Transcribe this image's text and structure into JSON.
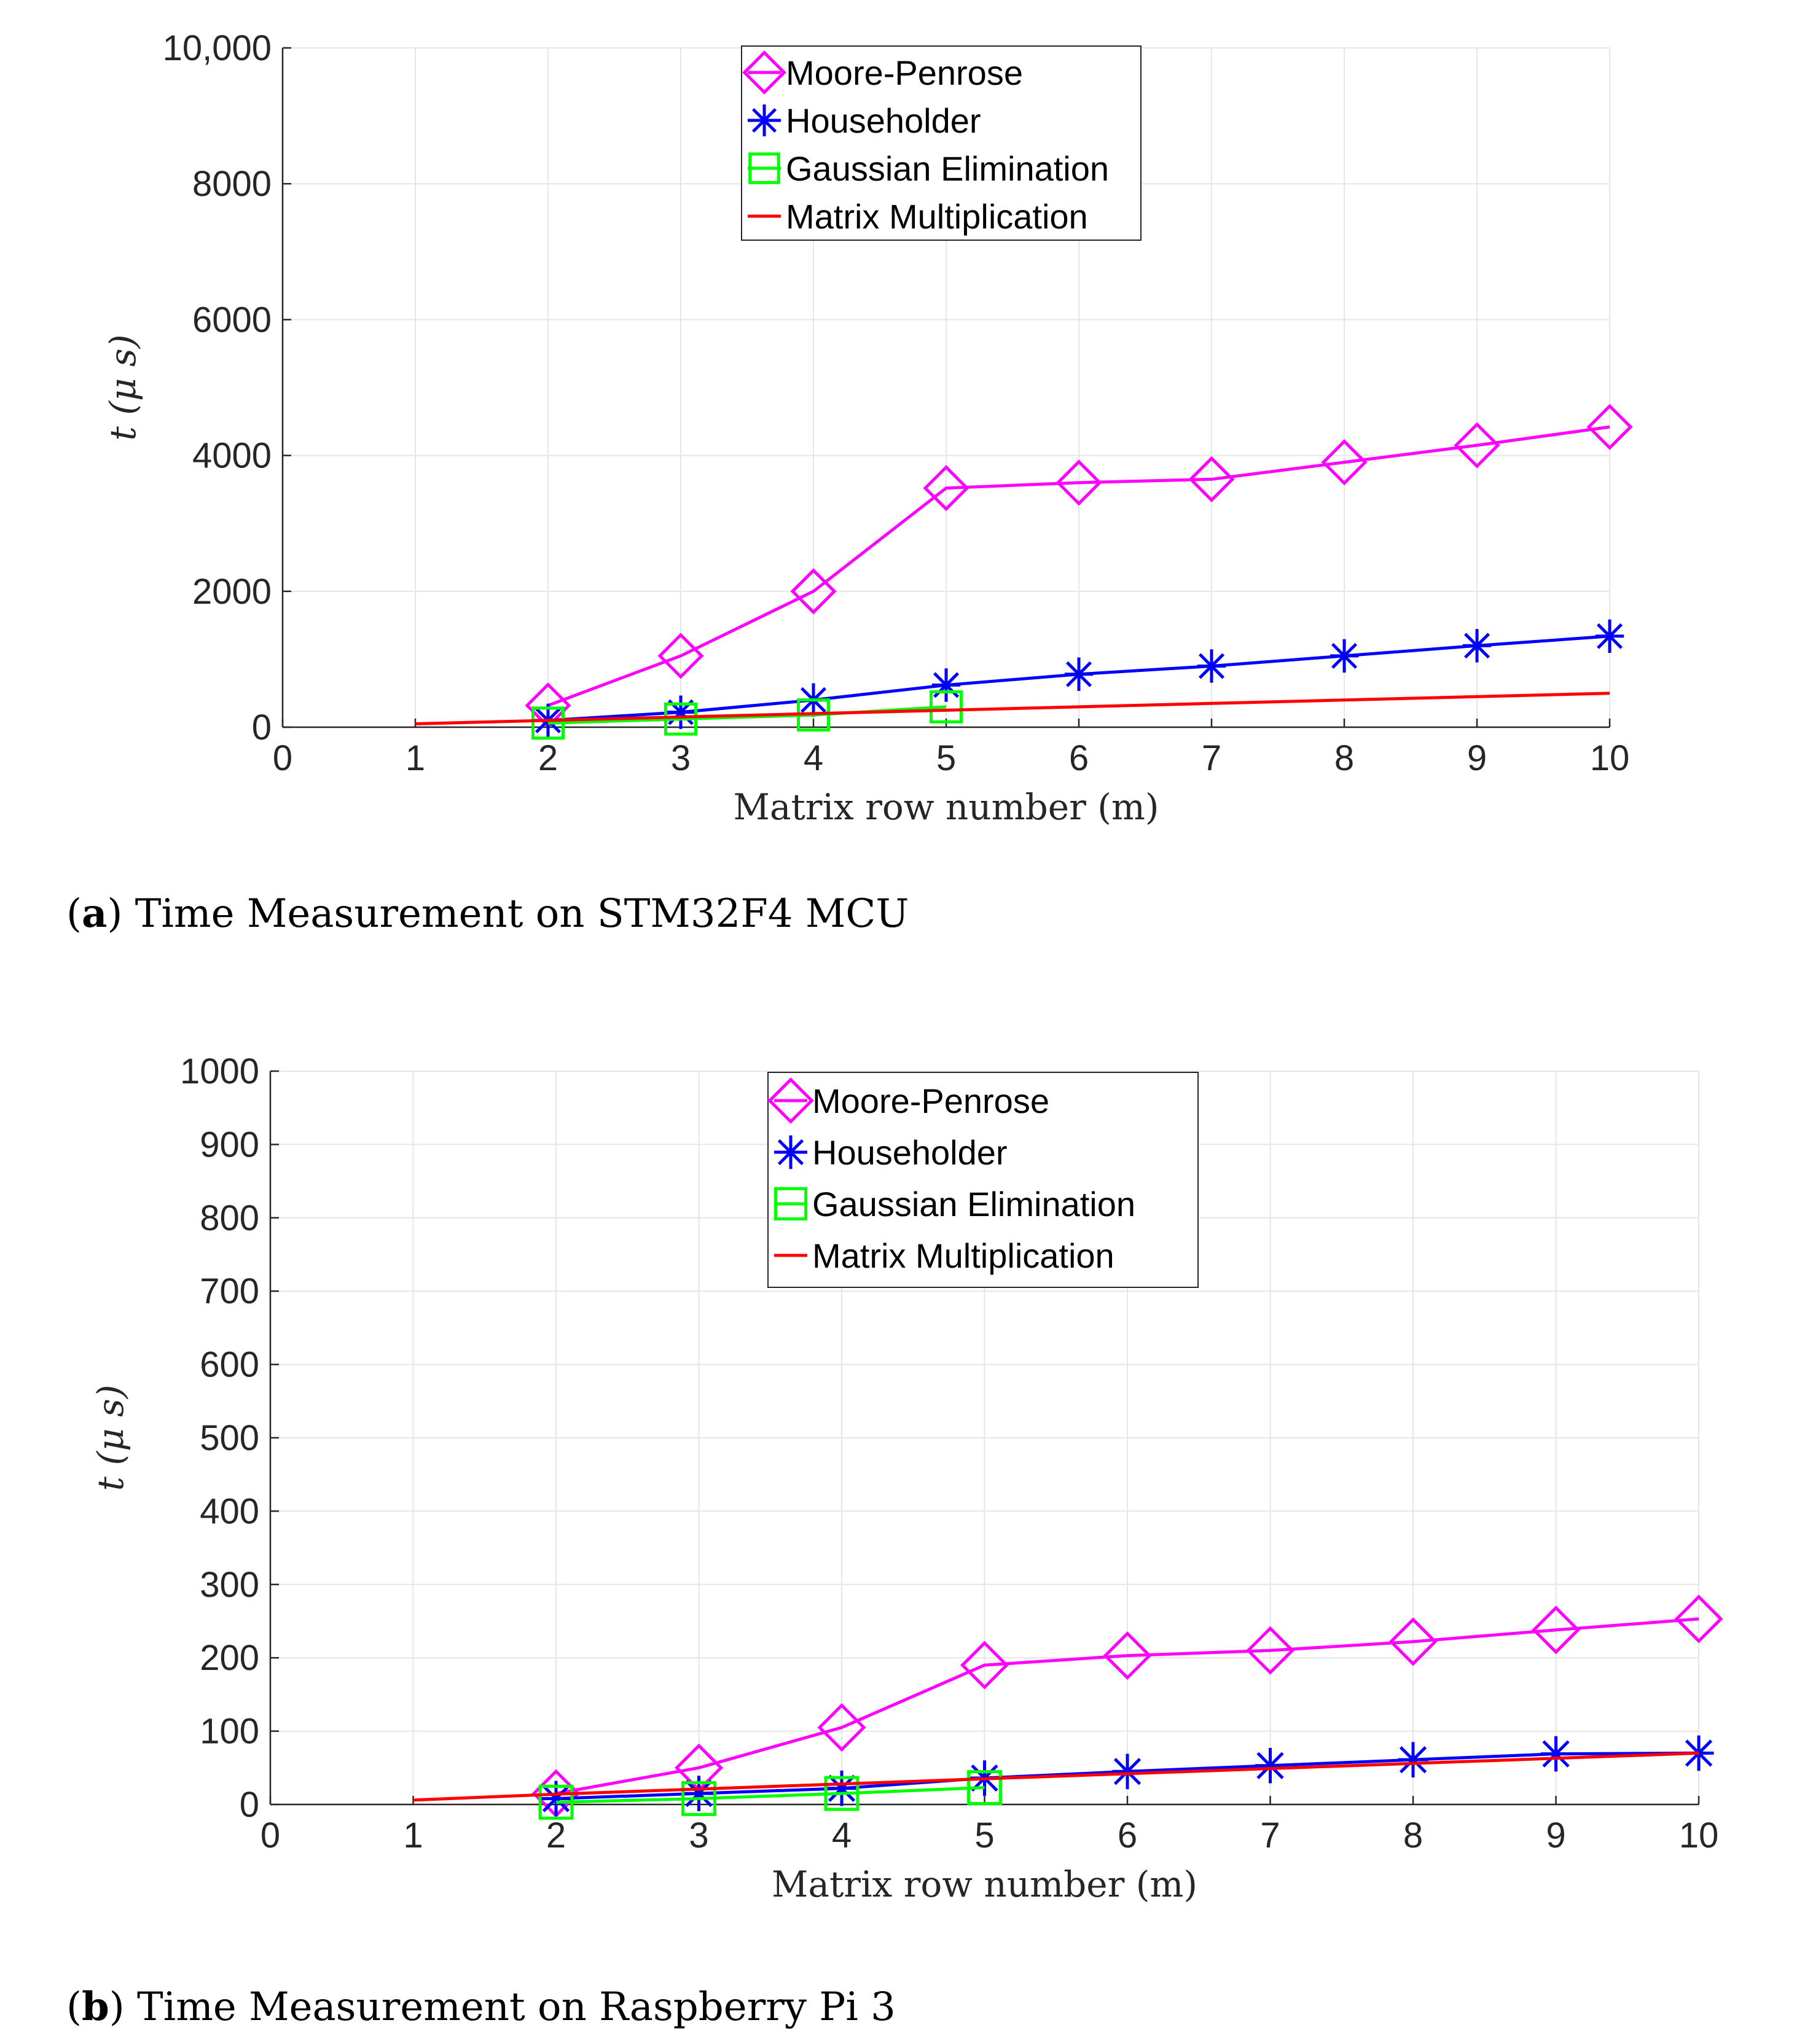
{
  "chart_data": [
    {
      "type": "line",
      "caption_letter": "a",
      "caption_text": "Time Measurement on STM32F4 MCU",
      "xlabel": "Matrix row number (m)",
      "ylabel": "t (μ s)",
      "xlim": [
        0,
        10
      ],
      "ylim": [
        0,
        10000
      ],
      "xticks": [
        0,
        1,
        2,
        3,
        4,
        5,
        6,
        7,
        8,
        9,
        10
      ],
      "yticks": [
        0,
        2000,
        4000,
        6000,
        8000,
        10000
      ],
      "ytick_labels": [
        "0",
        "2000",
        "4000",
        "6000",
        "8000",
        "10,000"
      ],
      "grid": true,
      "legend_position": "top-center",
      "series": [
        {
          "name": "Moore-Penrose",
          "color": "#ff00ff",
          "marker": "diamond",
          "x": [
            2,
            3,
            4,
            5,
            6,
            7,
            8,
            9,
            10
          ],
          "values": [
            320,
            1050,
            2000,
            3520,
            3600,
            3650,
            3900,
            4150,
            4420
          ]
        },
        {
          "name": "Householder",
          "color": "#0000ff",
          "marker": "asterisk",
          "x": [
            2,
            3,
            4,
            5,
            6,
            7,
            8,
            9,
            10
          ],
          "values": [
            100,
            220,
            400,
            620,
            780,
            900,
            1050,
            1200,
            1340
          ]
        },
        {
          "name": "Gaussian Elimination",
          "color": "#00ff00",
          "marker": "square",
          "x": [
            2,
            3,
            4,
            5
          ],
          "values": [
            60,
            120,
            180,
            300
          ]
        },
        {
          "name": "Matrix Multiplication",
          "color": "#ff0000",
          "marker": "none",
          "x": [
            1,
            2,
            3,
            4,
            5,
            6,
            7,
            8,
            9,
            10
          ],
          "values": [
            50,
            100,
            150,
            200,
            250,
            300,
            350,
            400,
            450,
            500
          ]
        }
      ]
    },
    {
      "type": "line",
      "caption_letter": "b",
      "caption_text": "Time Measurement on Raspberry Pi 3",
      "xlabel": "Matrix row number (m)",
      "ylabel": "t (μ s)",
      "xlim": [
        0,
        10
      ],
      "ylim": [
        0,
        1000
      ],
      "xticks": [
        0,
        1,
        2,
        3,
        4,
        5,
        6,
        7,
        8,
        9,
        10
      ],
      "yticks": [
        0,
        100,
        200,
        300,
        400,
        500,
        600,
        700,
        800,
        900,
        1000
      ],
      "ytick_labels": [
        "0",
        "100",
        "200",
        "300",
        "400",
        "500",
        "600",
        "700",
        "800",
        "900",
        "1000"
      ],
      "grid": true,
      "legend_position": "top-center",
      "series": [
        {
          "name": "Moore-Penrose",
          "color": "#ff00ff",
          "marker": "diamond",
          "x": [
            2,
            3,
            4,
            5,
            6,
            7,
            8,
            9,
            10
          ],
          "values": [
            15,
            50,
            105,
            190,
            203,
            210,
            222,
            238,
            253
          ]
        },
        {
          "name": "Householder",
          "color": "#0000ff",
          "marker": "asterisk",
          "x": [
            2,
            3,
            4,
            5,
            6,
            7,
            8,
            9,
            10
          ],
          "values": [
            8,
            15,
            22,
            36,
            45,
            53,
            61,
            69,
            70
          ]
        },
        {
          "name": "Gaussian Elimination",
          "color": "#00ff00",
          "marker": "square",
          "x": [
            2,
            3,
            4,
            5
          ],
          "values": [
            3,
            8,
            15,
            23
          ]
        },
        {
          "name": "Matrix Multiplication",
          "color": "#ff0000",
          "marker": "none",
          "x": [
            1,
            2,
            3,
            4,
            5,
            6,
            7,
            8,
            9,
            10
          ],
          "values": [
            6,
            14,
            21,
            28,
            35,
            42,
            49,
            56,
            63,
            70
          ]
        }
      ]
    }
  ]
}
